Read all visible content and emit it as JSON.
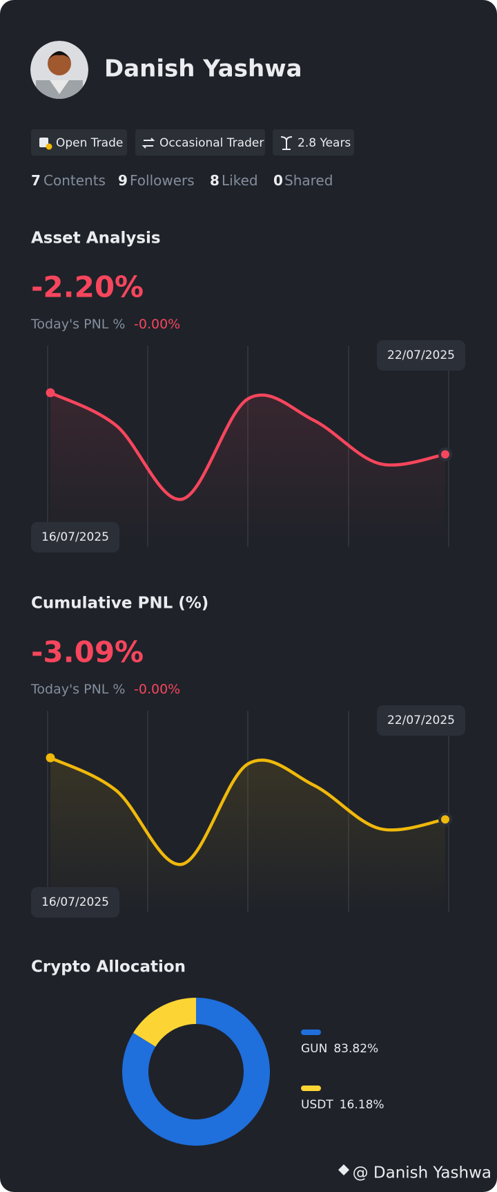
{
  "profile": {
    "name": "Danish Yashwa",
    "tags": [
      "Open Trade",
      "Occasional Trader",
      "2.8 Years"
    ],
    "stats": [
      {
        "count": 7,
        "label": "Contents"
      },
      {
        "count": 9,
        "label": "Followers"
      },
      {
        "count": 8,
        "label": "Liked"
      },
      {
        "count": 0,
        "label": "Shared"
      }
    ]
  },
  "asset_analysis": {
    "title": "Asset Analysis",
    "value": "-2.20%",
    "today_label": "Today's PNL %",
    "today_value": "-0.00%",
    "chart_data": {
      "type": "line",
      "categories": [
        "16/07/2025",
        null,
        null,
        null,
        null,
        null,
        "22/07/2025"
      ],
      "values": [
        0,
        -1.17,
        -3.8,
        -0.22,
        -0.98,
        -2.53,
        -2.2
      ],
      "color": "#f6465d"
    }
  },
  "cumulative_pnl": {
    "title": "Cumulative PNL (%)",
    "value": "-3.09%",
    "today_label": "Today's PNL %",
    "today_value": "-0.00%",
    "chart_data": {
      "type": "line",
      "categories": [
        "16/07/2025",
        null,
        null,
        null,
        null,
        null,
        "22/07/2025"
      ],
      "values": [
        0,
        -1.64,
        -5.34,
        -0.31,
        -1.37,
        -3.55,
        -3.09
      ],
      "color": "#f0b90b"
    }
  },
  "crypto_allocation": {
    "title": "Crypto Allocation",
    "chart_data": {
      "type": "donut",
      "categories": [
        "GUN",
        "USDT"
      ],
      "values": [
        83.82,
        16.18
      ],
      "value_labels": [
        "83.82%",
        "16.18%"
      ],
      "colors": [
        "#1f6fdc",
        "#fcd535"
      ]
    }
  },
  "watermark": "@ Danish Yashwa"
}
